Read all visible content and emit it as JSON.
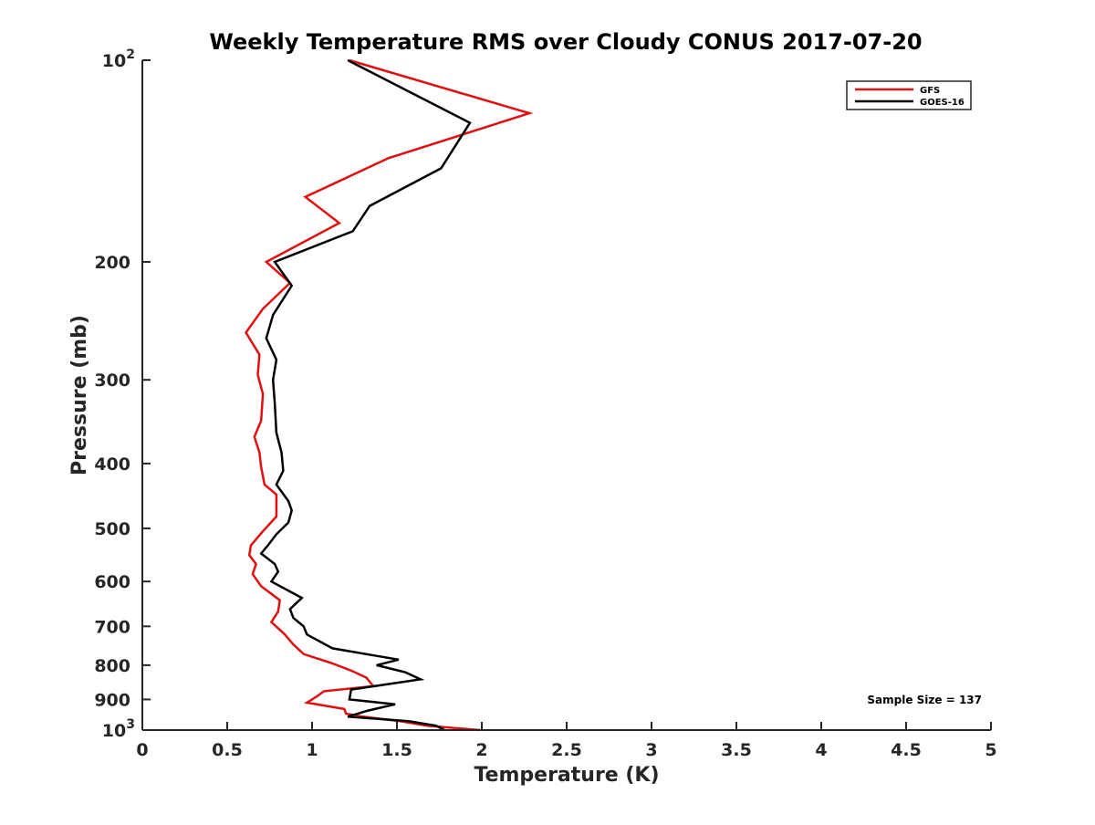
{
  "chart_data": {
    "type": "line",
    "title": "Weekly Temperature RMS over Cloudy CONUS 2017-07-20",
    "xlabel": "Temperature (K)",
    "ylabel": "Pressure (mb)",
    "xlim": [
      0,
      5
    ],
    "ylim": [
      100,
      1000
    ],
    "y_scale": "log",
    "y_reversed": true,
    "grid": false,
    "legend_position": "top-right",
    "x_ticks": [
      0,
      0.5,
      1,
      1.5,
      2,
      2.5,
      3,
      3.5,
      4,
      4.5,
      5
    ],
    "x_tick_labels": [
      "0",
      "0.5",
      "1",
      "1.5",
      "2",
      "2.5",
      "3",
      "3.5",
      "4",
      "4.5",
      "5"
    ],
    "y_ticks": [
      200,
      300,
      400,
      500,
      600,
      700,
      800,
      900
    ],
    "y_tick_labels": [
      "200",
      "300",
      "400",
      "500",
      "600",
      "700",
      "800",
      "900"
    ],
    "y_power_ticks": [
      {
        "value": 100,
        "base": "10",
        "exp": "2"
      },
      {
        "value": 1000,
        "base": "10",
        "exp": "3"
      }
    ],
    "annotation": "Sample Size = 137",
    "series": [
      {
        "name": "GFS",
        "color": "#e01010",
        "points": [
          [
            1.22,
            100
          ],
          [
            2.28,
            120
          ],
          [
            1.45,
            140
          ],
          [
            0.96,
            160
          ],
          [
            1.16,
            175
          ],
          [
            0.73,
            200
          ],
          [
            0.87,
            215
          ],
          [
            0.71,
            235
          ],
          [
            0.61,
            255
          ],
          [
            0.69,
            275
          ],
          [
            0.68,
            295
          ],
          [
            0.71,
            315
          ],
          [
            0.7,
            345
          ],
          [
            0.66,
            365
          ],
          [
            0.69,
            385
          ],
          [
            0.7,
            405
          ],
          [
            0.72,
            430
          ],
          [
            0.79,
            445
          ],
          [
            0.79,
            480
          ],
          [
            0.71,
            505
          ],
          [
            0.64,
            530
          ],
          [
            0.63,
            548
          ],
          [
            0.67,
            565
          ],
          [
            0.65,
            585
          ],
          [
            0.7,
            610
          ],
          [
            0.81,
            640
          ],
          [
            0.8,
            665
          ],
          [
            0.76,
            690
          ],
          [
            0.84,
            720
          ],
          [
            0.89,
            745
          ],
          [
            0.95,
            770
          ],
          [
            1.12,
            795
          ],
          [
            1.23,
            815
          ],
          [
            1.32,
            835
          ],
          [
            1.36,
            860
          ],
          [
            1.07,
            875
          ],
          [
            1.03,
            890
          ],
          [
            0.97,
            910
          ],
          [
            1.19,
            930
          ],
          [
            1.2,
            945
          ],
          [
            1.3,
            955
          ],
          [
            1.52,
            970
          ],
          [
            1.68,
            985
          ],
          [
            1.99,
            1000
          ]
        ]
      },
      {
        "name": "GOES-16",
        "color": "#000000",
        "points": [
          [
            1.21,
            100
          ],
          [
            1.93,
            124
          ],
          [
            1.76,
            145
          ],
          [
            1.34,
            165
          ],
          [
            1.24,
            180
          ],
          [
            0.78,
            200
          ],
          [
            0.88,
            217
          ],
          [
            0.77,
            240
          ],
          [
            0.73,
            260
          ],
          [
            0.79,
            280
          ],
          [
            0.77,
            300
          ],
          [
            0.78,
            325
          ],
          [
            0.79,
            360
          ],
          [
            0.82,
            385
          ],
          [
            0.83,
            410
          ],
          [
            0.79,
            430
          ],
          [
            0.86,
            455
          ],
          [
            0.88,
            470
          ],
          [
            0.86,
            490
          ],
          [
            0.79,
            510
          ],
          [
            0.74,
            530
          ],
          [
            0.7,
            545
          ],
          [
            0.78,
            565
          ],
          [
            0.8,
            580
          ],
          [
            0.76,
            600
          ],
          [
            0.94,
            635
          ],
          [
            0.87,
            660
          ],
          [
            0.89,
            680
          ],
          [
            0.95,
            700
          ],
          [
            0.97,
            720
          ],
          [
            1.12,
            755
          ],
          [
            1.51,
            785
          ],
          [
            1.38,
            800
          ],
          [
            1.55,
            820
          ],
          [
            1.64,
            840
          ],
          [
            1.23,
            870
          ],
          [
            1.22,
            900
          ],
          [
            1.49,
            915
          ],
          [
            1.33,
            935
          ],
          [
            1.21,
            955
          ],
          [
            1.57,
            970
          ],
          [
            1.73,
            985
          ],
          [
            1.78,
            1000
          ]
        ]
      }
    ]
  }
}
